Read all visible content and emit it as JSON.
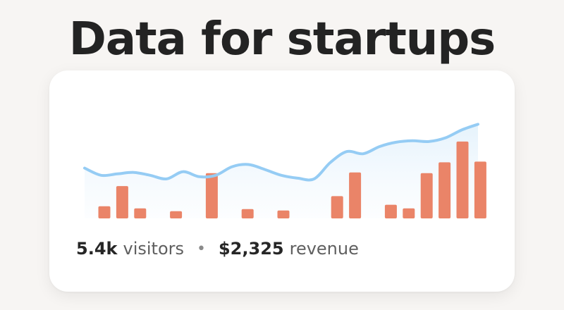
{
  "headline": "Data for startups",
  "stats": {
    "visitors_value": "5.4k",
    "visitors_label": "visitors",
    "separator": "•",
    "revenue_value": "$2,325",
    "revenue_label": "revenue"
  },
  "colors": {
    "bar": "#ea8468",
    "line": "#95ccf4",
    "area": "#eaf5fd",
    "card": "#ffffff",
    "background": "#f7f5f3"
  },
  "chart_data": {
    "type": "bar",
    "grid": false,
    "legend": "none",
    "ylim": [
      0,
      100
    ],
    "bar_series": {
      "values": [
        17,
        45,
        14,
        0,
        10,
        0,
        63,
        0,
        13,
        0,
        11,
        0,
        0,
        31,
        64,
        0,
        19,
        14,
        63,
        78,
        107,
        79
      ]
    },
    "line_series": {
      "values": [
        70,
        60,
        62,
        64,
        60,
        55,
        65,
        58,
        60,
        72,
        75,
        68,
        60,
        56,
        55,
        78,
        93,
        90,
        100,
        106,
        108,
        107,
        112,
        123,
        131
      ]
    }
  }
}
